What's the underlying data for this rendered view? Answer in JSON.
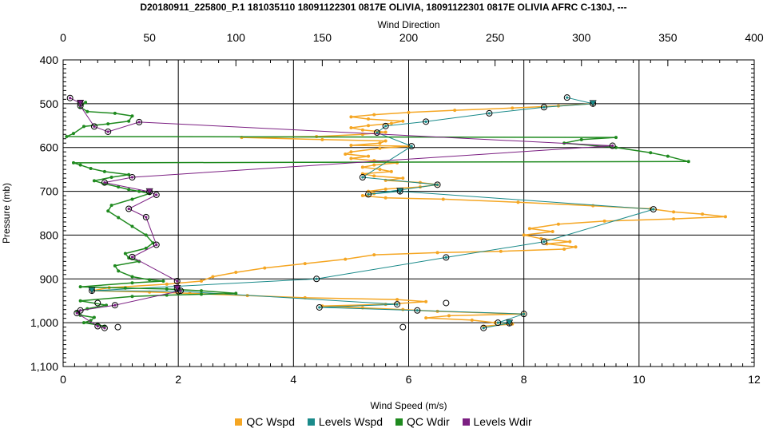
{
  "title": "D20180911_225800_P.1 181035110 18091122301 0817E OLIVIA, 18091122301 0817E OLIVIA AFRC C-130J, ---",
  "chart_data": {
    "type": "line",
    "title": "D20180911_225800_P.1 181035110 18091122301 0817E OLIVIA, 18091122301 0817E OLIVIA AFRC C-130J, ---",
    "xlabel": "Wind Speed (m/s)",
    "x2label": "Wind Direction",
    "ylabel": "Pressure (mb)",
    "xlim": [
      0,
      12
    ],
    "x2lim": [
      0,
      400
    ],
    "ylim": [
      400,
      1100
    ],
    "y_inverted": true,
    "xticks": [
      "0",
      "2",
      "4",
      "6",
      "8",
      "10",
      "12"
    ],
    "x2ticks": [
      "0",
      "50",
      "100",
      "150",
      "200",
      "250",
      "300",
      "350",
      "400"
    ],
    "yticks": [
      "400",
      "500",
      "600",
      "700",
      "800",
      "900",
      "1,000",
      "1,100"
    ],
    "grid": true,
    "legend_position": "bottom",
    "series": [
      {
        "name": "QC Wspd",
        "axis": "wind_speed",
        "color": "#f5a623",
        "points": [
          [
            9.2,
            500
          ],
          [
            8.6,
            505
          ],
          [
            7.8,
            510
          ],
          [
            6.8,
            515
          ],
          [
            6.0,
            520
          ],
          [
            5.4,
            525
          ],
          [
            5.0,
            530
          ],
          [
            5.3,
            535
          ],
          [
            5.9,
            540
          ],
          [
            5.7,
            545
          ],
          [
            5.3,
            550
          ],
          [
            5.0,
            555
          ],
          [
            5.2,
            560
          ],
          [
            5.6,
            565
          ],
          [
            5.2,
            570
          ],
          [
            4.4,
            575
          ],
          [
            3.1,
            577
          ],
          [
            4.5,
            582
          ],
          [
            5.6,
            585
          ],
          [
            5.5,
            590
          ],
          [
            5.0,
            595
          ],
          [
            6.0,
            597
          ],
          [
            5.5,
            602
          ],
          [
            5.0,
            610
          ],
          [
            4.9,
            615
          ],
          [
            5.3,
            620
          ],
          [
            5.0,
            625
          ],
          [
            5.4,
            630
          ],
          [
            5.8,
            635
          ],
          [
            5.4,
            640
          ],
          [
            5.2,
            645
          ],
          [
            5.5,
            650
          ],
          [
            5.7,
            655
          ],
          [
            5.2,
            660
          ],
          [
            5.4,
            665
          ],
          [
            5.9,
            670
          ],
          [
            5.6,
            675
          ],
          [
            6.2,
            680
          ],
          [
            6.5,
            685
          ],
          [
            6.2,
            690
          ],
          [
            5.6,
            695
          ],
          [
            5.3,
            700
          ],
          [
            5.4,
            705
          ],
          [
            5.2,
            710
          ],
          [
            5.6,
            715
          ],
          [
            6.6,
            718
          ],
          [
            7.9,
            725
          ],
          [
            9.2,
            733
          ],
          [
            10.2,
            740
          ],
          [
            10.6,
            747
          ],
          [
            11.1,
            752
          ],
          [
            11.5,
            758
          ],
          [
            10.6,
            763
          ],
          [
            9.4,
            768
          ],
          [
            8.6,
            775
          ],
          [
            8.1,
            785
          ],
          [
            8.5,
            792
          ],
          [
            8.0,
            800
          ],
          [
            8.3,
            808
          ],
          [
            8.8,
            815
          ],
          [
            8.4,
            820
          ],
          [
            8.9,
            827
          ],
          [
            8.7,
            832
          ],
          [
            7.6,
            837
          ],
          [
            6.5,
            840
          ],
          [
            5.4,
            845
          ],
          [
            4.9,
            855
          ],
          [
            4.2,
            865
          ],
          [
            3.5,
            875
          ],
          [
            3.0,
            885
          ],
          [
            2.6,
            895
          ],
          [
            2.4,
            905
          ],
          [
            1.8,
            912
          ],
          [
            0.8,
            920
          ],
          [
            0.5,
            927
          ],
          [
            1.5,
            930
          ],
          [
            2.2,
            933
          ],
          [
            3.2,
            938
          ],
          [
            4.2,
            943
          ],
          [
            5.8,
            947
          ],
          [
            6.3,
            952
          ],
          [
            5.6,
            958
          ],
          [
            4.5,
            962
          ],
          [
            5.2,
            966
          ],
          [
            5.9,
            970
          ],
          [
            6.5,
            974
          ],
          [
            8.0,
            980
          ],
          [
            6.7,
            984
          ],
          [
            6.3,
            989
          ],
          [
            7.1,
            994
          ],
          [
            7.5,
            1000
          ],
          [
            7.8,
            1003
          ],
          [
            7.3,
            1008
          ]
        ]
      },
      {
        "name": "Levels Wspd",
        "axis": "wind_speed",
        "color": "#1a8a8a",
        "points": [
          [
            8.75,
            486
          ],
          [
            9.2,
            500
          ],
          [
            8.35,
            508
          ],
          [
            7.4,
            522
          ],
          [
            6.3,
            541
          ],
          [
            5.6,
            551
          ],
          [
            5.45,
            566
          ],
          [
            6.05,
            597
          ],
          [
            5.2,
            668
          ],
          [
            6.5,
            685
          ],
          [
            5.3,
            707
          ],
          [
            5.85,
            700
          ],
          [
            10.25,
            741
          ],
          [
            8.35,
            815
          ],
          [
            6.65,
            851
          ],
          [
            4.4,
            900
          ],
          [
            0.5,
            927
          ],
          [
            2.0,
            928
          ],
          [
            5.8,
            958
          ],
          [
            4.45,
            965
          ],
          [
            6.15,
            972
          ],
          [
            8.0,
            980
          ],
          [
            7.55,
            1000
          ],
          [
            7.75,
            1001
          ],
          [
            7.3,
            1012
          ]
        ]
      },
      {
        "name": "QC Wdir",
        "axis": "wind_direction",
        "color": "#1f8a1f",
        "points": [
          [
            13,
            497
          ],
          [
            10,
            508
          ],
          [
            14,
            518
          ],
          [
            30,
            522
          ],
          [
            40,
            528
          ],
          [
            38,
            540
          ],
          [
            26,
            546
          ],
          [
            12,
            552
          ],
          [
            6,
            568
          ],
          [
            2,
            575
          ],
          [
            320,
            577
          ],
          [
            300,
            582
          ],
          [
            290,
            590
          ],
          [
            320,
            600
          ],
          [
            340,
            612
          ],
          [
            350,
            620
          ],
          [
            362,
            632
          ],
          [
            6,
            635
          ],
          [
            10,
            640
          ],
          [
            16,
            648
          ],
          [
            24,
            655
          ],
          [
            38,
            662
          ],
          [
            28,
            668
          ],
          [
            18,
            676
          ],
          [
            24,
            683
          ],
          [
            32,
            690
          ],
          [
            38,
            696
          ],
          [
            44,
            700
          ],
          [
            50,
            705
          ],
          [
            40,
            718
          ],
          [
            28,
            732
          ],
          [
            26,
            745
          ],
          [
            32,
            760
          ],
          [
            40,
            780
          ],
          [
            48,
            800
          ],
          [
            52,
            818
          ],
          [
            48,
            830
          ],
          [
            36,
            842
          ],
          [
            38,
            852
          ],
          [
            44,
            860
          ],
          [
            30,
            870
          ],
          [
            32,
            882
          ],
          [
            40,
            895
          ],
          [
            50,
            902
          ],
          [
            58,
            905
          ],
          [
            40,
            909
          ],
          [
            10,
            918
          ],
          [
            36,
            921
          ],
          [
            60,
            923
          ],
          [
            80,
            927
          ],
          [
            100,
            933
          ],
          [
            80,
            935
          ],
          [
            60,
            937
          ],
          [
            40,
            940
          ],
          [
            10,
            950
          ],
          [
            25,
            960
          ],
          [
            14,
            968
          ],
          [
            8,
            975
          ],
          [
            10,
            983
          ],
          [
            18,
            988
          ],
          [
            16,
            995
          ],
          [
            12,
            1000
          ],
          [
            20,
            1005
          ],
          [
            24,
            1008
          ]
        ]
      },
      {
        "name": "Levels Wdir",
        "axis": "wind_direction",
        "color": "#7b1f82",
        "points": [
          [
            4,
            487
          ],
          [
            10,
            499
          ],
          [
            10,
            505
          ],
          [
            18,
            552
          ],
          [
            26,
            564
          ],
          [
            44,
            542
          ],
          [
            318,
            596
          ],
          [
            40,
            668
          ],
          [
            24,
            680
          ],
          [
            50,
            701
          ],
          [
            54,
            708
          ],
          [
            38,
            740
          ],
          [
            48,
            759
          ],
          [
            54,
            822
          ],
          [
            40,
            850
          ],
          [
            66,
            905
          ],
          [
            66,
            922
          ],
          [
            68,
            927
          ],
          [
            30,
            960
          ],
          [
            10,
            972
          ],
          [
            8,
            978
          ],
          [
            20,
            1008
          ],
          [
            24,
            1012
          ]
        ]
      }
    ],
    "unmatched_markers": {
      "name": "",
      "color": "#000000",
      "points_wind_speed": [
        [
          0.6,
          955
        ],
        [
          0.95,
          1010
        ],
        [
          5.9,
          1010
        ],
        [
          6.65,
          955
        ]
      ]
    }
  },
  "legend": {
    "items": [
      {
        "label": "QC Wspd",
        "color": "#f5a623"
      },
      {
        "label": "Levels Wspd",
        "color": "#1a8a8a"
      },
      {
        "label": "QC Wdir",
        "color": "#1f8a1f"
      },
      {
        "label": "Levels Wdir",
        "color": "#7b1f82"
      }
    ]
  }
}
